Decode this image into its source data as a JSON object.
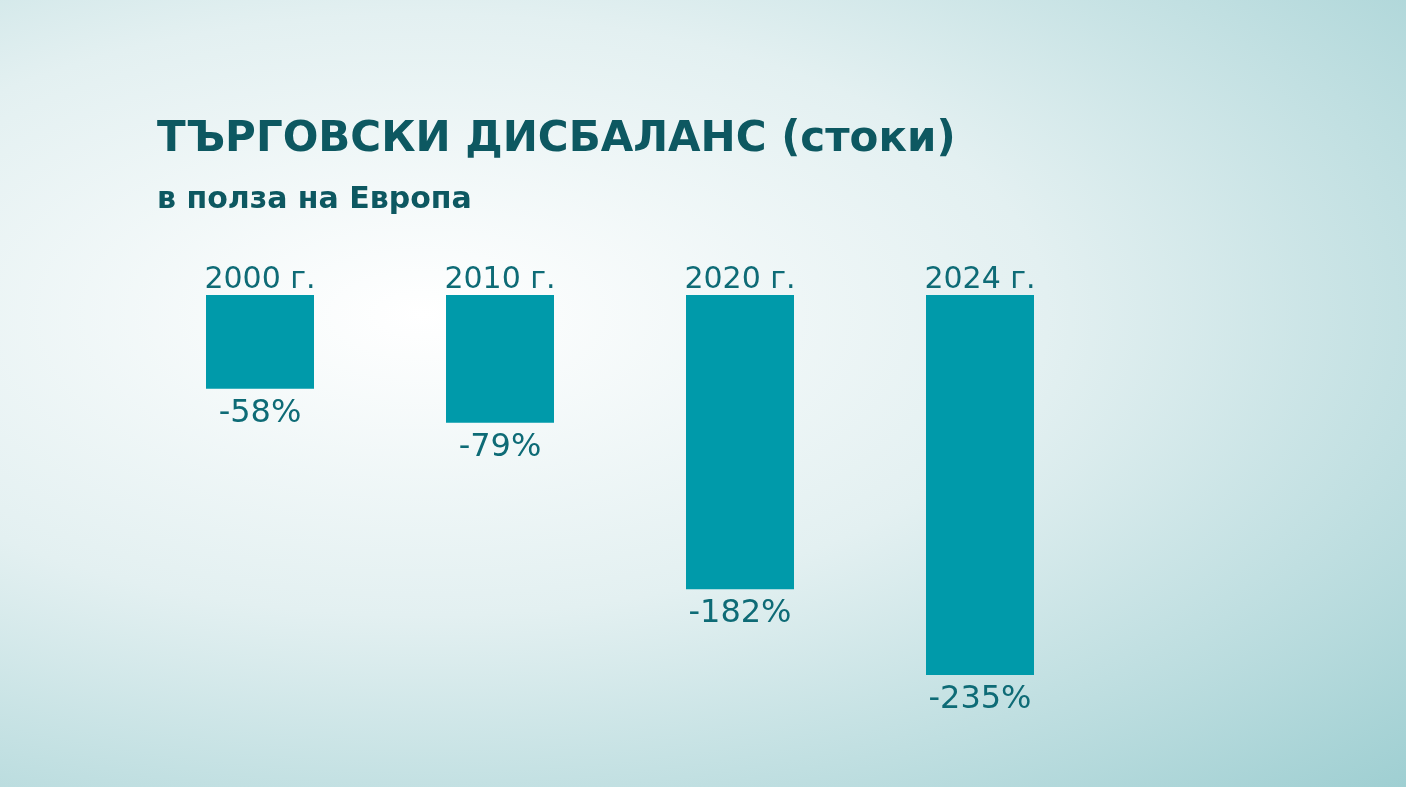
{
  "chart_data": {
    "type": "bar",
    "title": "ТЪРГОВСКИ ДИСБАЛАНС (стоки)",
    "subtitle": "в полза на Европа",
    "categories": [
      "2000 г.",
      "2010 г.",
      "2020 г.",
      "2024 г."
    ],
    "values": [
      -58,
      -79,
      -182,
      -235
    ],
    "value_labels": [
      "-58%",
      "-79%",
      "-182%",
      "-235%"
    ],
    "color": "#009aaa",
    "tick_labels": "x",
    "grid": false,
    "legend": false
  }
}
